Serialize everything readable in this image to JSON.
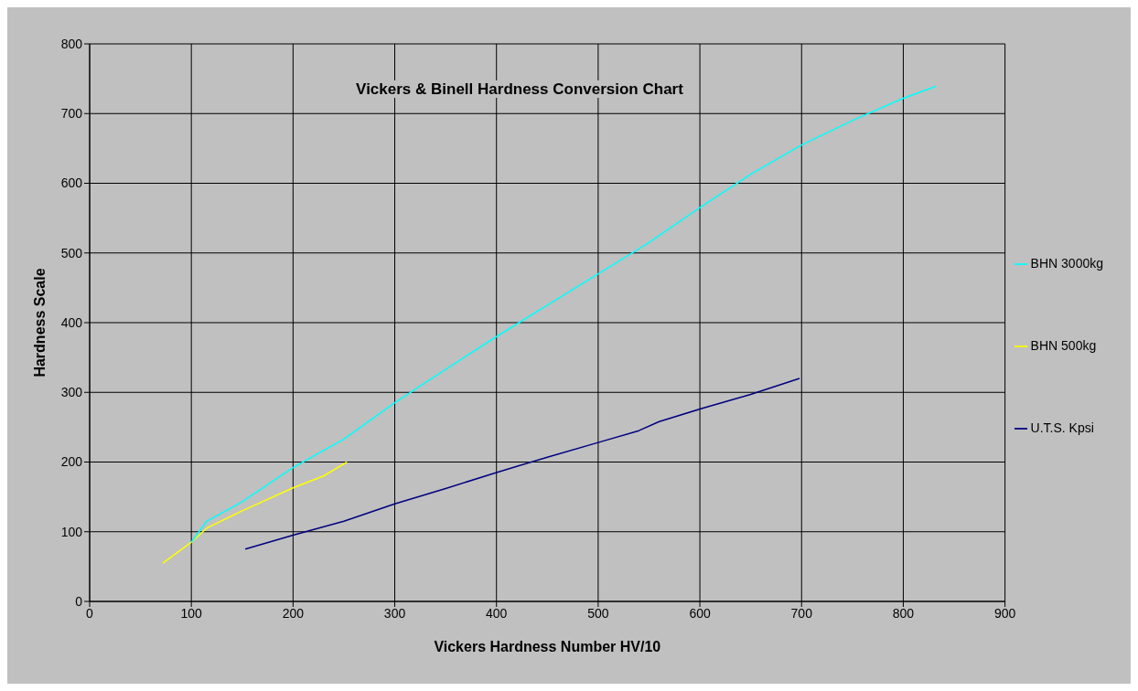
{
  "chart_data": {
    "type": "line",
    "title": "Vickers & Binell Hardness Conversion Chart",
    "xlabel": "Vickers Hardness Number HV/10",
    "ylabel": "Hardness Scale",
    "xlim": [
      0,
      900
    ],
    "xticks": [
      0,
      100,
      200,
      300,
      400,
      500,
      600,
      700,
      800,
      900
    ],
    "ylim": [
      0,
      800
    ],
    "yticks": [
      0,
      100,
      200,
      300,
      400,
      500,
      600,
      700,
      800
    ],
    "grid": true,
    "legend": "right",
    "marker": "none",
    "line_style": "solid",
    "series": [
      {
        "name": "U.T.S. Kpsi",
        "color": "#000080",
        "x": [
          153,
          200,
          250,
          300,
          350,
          400,
          450,
          500,
          540,
          560,
          600,
          650,
          698
        ],
        "values": [
          75,
          95,
          115,
          140,
          162,
          185,
          207,
          228,
          245,
          258,
          276,
          297,
          320
        ]
      },
      {
        "name": "BHN 500kg",
        "color": "#ffff00",
        "x": [
          72,
          100,
          115,
          150,
          200,
          230,
          253
        ],
        "values": [
          55,
          85,
          105,
          130,
          163,
          180,
          200
        ]
      },
      {
        "name": "BHN 3000kg",
        "color": "#00ffff",
        "x": [
          100,
          115,
          150,
          200,
          250,
          300,
          350,
          400,
          450,
          500,
          550,
          600,
          650,
          700,
          750,
          800,
          832
        ],
        "values": [
          85,
          115,
          143,
          192,
          233,
          285,
          333,
          380,
          425,
          470,
          515,
          565,
          613,
          655,
          690,
          722,
          739
        ]
      }
    ]
  }
}
